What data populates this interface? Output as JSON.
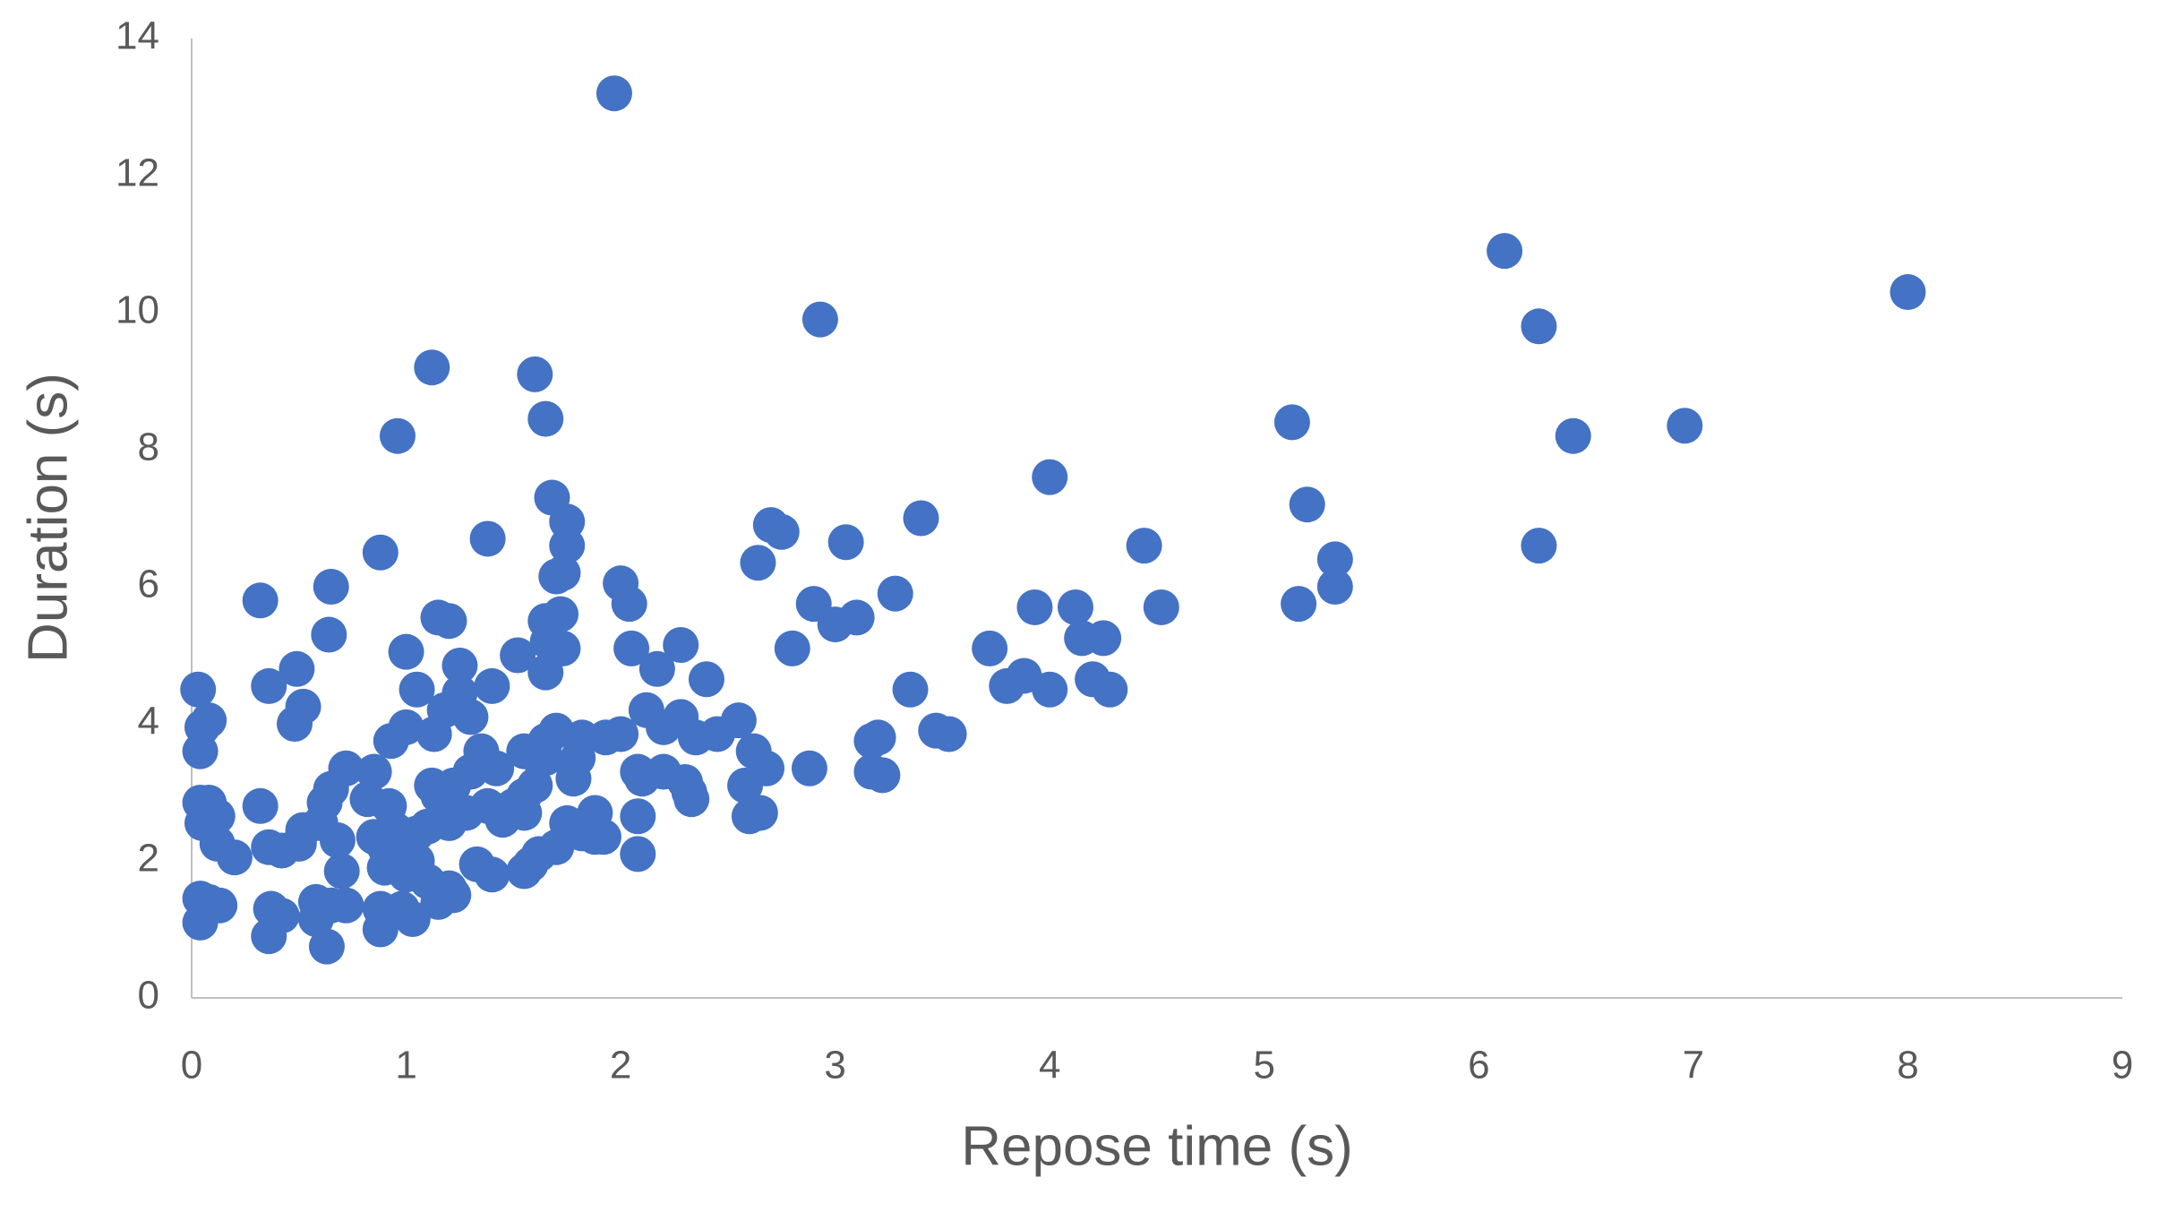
{
  "chart_data": {
    "type": "scatter",
    "x_label": "Repose time (s)",
    "y_label": "Duration (s)",
    "color": "#4472c4",
    "xlim": [
      0,
      9
    ],
    "ylim": [
      0,
      14
    ],
    "xticks": [
      0,
      1,
      2,
      3,
      4,
      5,
      6,
      7,
      8,
      9
    ],
    "yticks": [
      0,
      2,
      4,
      6,
      8,
      10,
      12,
      14
    ],
    "grid": false,
    "x": [
      1.97,
      2.93,
      1.12,
      1.6,
      0.96,
      1.65,
      6.12,
      6.28,
      8.0,
      5.13,
      6.44,
      6.96,
      4.0,
      5.2,
      6.28,
      5.33,
      5.33,
      5.16,
      4.44,
      4.52,
      3.4,
      3.05,
      2.7,
      2.75,
      2.64,
      2.9,
      3.0,
      3.1,
      3.28,
      2.8,
      3.35,
      3.47,
      3.53,
      3.2,
      3.17,
      3.17,
      3.22,
      2.88,
      3.72,
      3.8,
      3.88,
      3.93,
      4.0,
      4.12,
      4.15,
      4.25,
      4.2,
      4.28,
      2.0,
      2.04,
      2.05,
      2.28,
      2.17,
      2.4,
      2.55,
      2.45,
      2.35,
      2.28,
      2.12,
      2.2,
      2.0,
      1.93,
      2.08,
      2.1,
      2.2,
      2.3,
      2.32,
      2.33,
      2.08,
      2.08,
      1.92,
      1.88,
      2.58,
      2.62,
      2.68,
      2.6,
      2.65,
      1.68,
      1.75,
      1.75,
      1.7,
      1.73,
      1.65,
      1.72,
      1.66,
      1.73,
      1.65,
      1.52,
      1.38,
      1.4,
      1.2,
      1.15,
      1.25,
      1.25,
      1.3,
      1.18,
      1.13,
      1.7,
      1.65,
      1.82,
      1.8,
      1.65,
      1.6,
      1.55,
      1.78,
      1.6,
      1.55,
      1.5,
      1.55,
      1.42,
      1.35,
      1.3,
      1.22,
      1.12,
      1.15,
      1.28,
      1.38,
      1.45,
      1.2,
      1.1,
      1.05,
      1.75,
      1.82,
      1.88,
      1.7,
      1.62,
      1.58,
      1.55,
      1.4,
      1.33,
      1.2,
      1.22,
      1.15,
      1.1,
      1.05,
      0.95,
      1.0,
      0.98,
      1.03,
      0.88,
      0.88,
      0.88,
      0.65,
      0.64,
      0.49,
      0.52,
      0.48,
      0.36,
      0.32,
      0.32,
      0.36,
      0.42,
      0.5,
      0.52,
      0.6,
      0.62,
      0.65,
      0.72,
      0.85,
      0.82,
      0.92,
      0.85,
      0.9,
      0.9,
      0.95,
      1.0,
      0.93,
      1.0,
      1.05,
      0.68,
      0.7,
      0.72,
      0.65,
      0.58,
      0.58,
      0.63,
      0.36,
      0.37,
      0.42,
      0.03,
      0.05,
      0.08,
      0.04,
      0.04,
      0.08,
      0.12,
      0.05,
      0.12,
      0.2,
      0.04,
      0.08,
      0.13,
      0.04
    ],
    "values": [
      13.2,
      9.9,
      9.2,
      9.1,
      8.2,
      8.45,
      10.9,
      9.8,
      10.3,
      8.4,
      8.2,
      8.35,
      7.6,
      7.2,
      6.6,
      6.4,
      6.0,
      5.75,
      6.6,
      5.7,
      7.0,
      6.65,
      6.9,
      6.8,
      6.35,
      5.75,
      5.45,
      5.55,
      5.9,
      5.1,
      4.5,
      3.9,
      3.85,
      3.8,
      3.75,
      3.3,
      3.25,
      3.35,
      5.1,
      4.55,
      4.7,
      5.7,
      4.5,
      5.7,
      5.25,
      5.25,
      4.65,
      4.5,
      6.05,
      5.75,
      5.1,
      5.15,
      4.8,
      4.65,
      4.05,
      3.85,
      3.8,
      4.1,
      4.2,
      3.95,
      3.85,
      3.8,
      3.3,
      3.2,
      3.3,
      3.15,
      3.0,
      2.9,
      2.65,
      2.1,
      2.35,
      2.7,
      3.1,
      3.6,
      3.35,
      2.65,
      2.7,
      7.3,
      6.95,
      6.6,
      6.15,
      6.2,
      5.5,
      5.6,
      5.2,
      5.1,
      4.75,
      5.0,
      6.7,
      4.55,
      5.5,
      5.55,
      4.85,
      4.45,
      4.1,
      4.2,
      3.85,
      3.9,
      3.75,
      3.8,
      3.5,
      3.5,
      3.55,
      3.6,
      3.2,
      3.1,
      2.95,
      2.8,
      2.7,
      3.35,
      3.6,
      3.3,
      3.1,
      3.1,
      2.95,
      2.7,
      2.8,
      2.6,
      2.55,
      2.5,
      2.4,
      2.55,
      2.4,
      2.35,
      2.2,
      2.1,
      1.95,
      1.85,
      1.8,
      1.95,
      1.6,
      1.5,
      1.4,
      1.7,
      2.0,
      2.0,
      1.8,
      1.3,
      1.15,
      1.3,
      1.0,
      6.5,
      6.0,
      5.3,
      4.8,
      4.25,
      4.0,
      4.55,
      5.8,
      2.8,
      2.2,
      2.15,
      2.25,
      2.45,
      2.55,
      2.85,
      3.05,
      3.35,
      3.3,
      2.9,
      2.8,
      2.35,
      2.2,
      1.9,
      2.45,
      3.95,
      3.75,
      5.05,
      4.5,
      2.3,
      1.85,
      1.35,
      1.35,
      1.4,
      1.15,
      0.75,
      0.9,
      1.3,
      1.2,
      4.5,
      3.95,
      4.05,
      3.6,
      2.85,
      2.85,
      2.65,
      2.55,
      2.25,
      2.05,
      1.45,
      1.4,
      1.35,
      1.1
    ]
  }
}
